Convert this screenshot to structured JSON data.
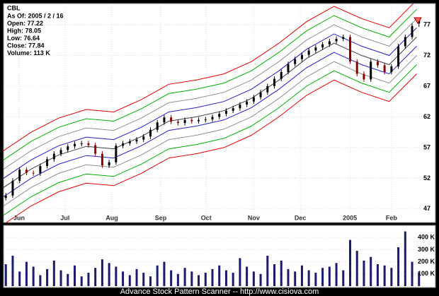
{
  "chart_data": [
    {
      "type": "candlestick",
      "title": "CBL",
      "annotations": [
        "As Of: 2005 / 2 / 16",
        "Open: 77.22",
        "High: 78.05",
        "Low: 76.64",
        "Close: 77.84",
        "Volume: 113 K"
      ],
      "xlim": [
        0,
        182
      ],
      "xticks": [
        {
          "value": 6.8,
          "label": "Jun"
        },
        {
          "value": 26.8,
          "label": "Jul"
        },
        {
          "value": 47.2,
          "label": "Aug"
        },
        {
          "value": 68.5,
          "label": "Sep"
        },
        {
          "value": 88.3,
          "label": "Oct"
        },
        {
          "value": 109,
          "label": "Nov"
        },
        {
          "value": 129.3,
          "label": "Dec"
        },
        {
          "value": 150.9,
          "label": "2005"
        },
        {
          "value": 169,
          "label": "Feb"
        }
      ],
      "ylim": [
        44.8,
        80.45
      ],
      "yticks": [
        47,
        52,
        57,
        62,
        67,
        72,
        77
      ],
      "grid": true,
      "up_color": "#000000",
      "down_color": "#8b0000",
      "x": [
        1,
        4,
        7,
        10,
        13,
        16,
        19,
        22,
        25,
        28,
        31,
        34,
        37,
        40,
        43,
        46,
        49,
        52,
        55,
        58,
        61,
        64,
        67,
        70,
        73,
        76,
        79,
        82,
        85,
        88,
        91,
        94,
        97,
        100,
        103,
        106,
        109,
        112,
        115,
        118,
        121,
        124,
        127,
        130,
        133,
        136,
        139,
        142,
        145,
        148,
        151,
        154,
        157,
        160,
        163,
        166,
        169,
        172,
        175,
        178,
        181
      ],
      "open": [
        48.8,
        49.2,
        51.6,
        53.4,
        52.9,
        52.8,
        54.0,
        55.1,
        56.0,
        56.6,
        57.2,
        57.6,
        57.7,
        57.4,
        56.0,
        54.1,
        54.6,
        57.3,
        57.7,
        58.0,
        58.3,
        58.8,
        59.9,
        61.1,
        61.9,
        61.2,
        61.0,
        61.5,
        61.3,
        61.5,
        61.6,
        62.0,
        62.5,
        63.0,
        63.4,
        64.0,
        64.5,
        65.2,
        66.0,
        67.0,
        68.2,
        69.3,
        70.6,
        71.4,
        72.1,
        72.8,
        73.3,
        73.8,
        74.3,
        74.7,
        75.0,
        71.0,
        69.0,
        68.1,
        71.0,
        70.4,
        69.3,
        70.2,
        73.5,
        75.0,
        77.22
      ],
      "high": [
        49.6,
        52.0,
        53.8,
        53.8,
        53.3,
        54.4,
        55.5,
        56.4,
        57.0,
        57.6,
        58.0,
        58.1,
        58.1,
        57.8,
        56.4,
        55.0,
        57.7,
        58.1,
        58.4,
        58.7,
        59.2,
        60.3,
        61.5,
        62.3,
        62.3,
        61.6,
        61.9,
        61.9,
        61.9,
        62.0,
        62.4,
        62.9,
        63.4,
        63.8,
        64.4,
        64.9,
        65.6,
        66.4,
        67.4,
        68.6,
        69.7,
        71.0,
        71.8,
        72.5,
        73.2,
        73.7,
        74.2,
        74.7,
        75.1,
        75.4,
        75.4,
        71.4,
        69.4,
        71.4,
        71.4,
        70.8,
        70.6,
        73.9,
        75.4,
        77.2,
        78.05
      ],
      "low": [
        48.4,
        48.8,
        51.2,
        52.5,
        52.4,
        52.4,
        53.6,
        54.7,
        55.6,
        56.2,
        56.8,
        57.2,
        57.0,
        55.6,
        53.7,
        53.7,
        54.2,
        56.9,
        57.3,
        57.6,
        57.9,
        58.4,
        59.5,
        60.7,
        60.8,
        60.6,
        60.6,
        60.9,
        60.9,
        61.1,
        61.2,
        61.6,
        62.1,
        62.6,
        63.0,
        63.6,
        64.1,
        64.8,
        65.6,
        66.6,
        67.8,
        68.9,
        70.2,
        71.0,
        71.7,
        72.4,
        72.9,
        73.4,
        73.9,
        74.3,
        70.6,
        68.6,
        67.7,
        67.7,
        70.0,
        68.9,
        68.9,
        69.8,
        73.1,
        74.6,
        76.64
      ],
      "close": [
        49.2,
        51.6,
        53.4,
        52.9,
        52.8,
        54.0,
        55.1,
        56.0,
        56.6,
        57.2,
        57.6,
        57.7,
        57.4,
        56.0,
        54.1,
        54.6,
        57.3,
        57.7,
        58.0,
        58.3,
        58.8,
        59.9,
        61.1,
        61.9,
        61.2,
        61.0,
        61.5,
        61.3,
        61.5,
        61.6,
        62.0,
        62.5,
        63.0,
        63.4,
        64.0,
        64.5,
        65.2,
        66.0,
        67.0,
        68.2,
        69.3,
        70.6,
        71.4,
        72.1,
        72.8,
        73.3,
        73.8,
        74.3,
        74.7,
        75.0,
        71.0,
        69.0,
        68.1,
        71.0,
        70.4,
        69.3,
        70.2,
        73.5,
        75.0,
        76.8,
        77.84
      ],
      "band_x": [
        0,
        12,
        24,
        36,
        48,
        60,
        72,
        84,
        96,
        108,
        120,
        132,
        144,
        156,
        168,
        180
      ],
      "bands": [
        {
          "color": "#e00000",
          "values": [
            56.5,
            59.5,
            61.8,
            63.2,
            62.8,
            64.8,
            67.3,
            68.0,
            69.0,
            71.0,
            74.0,
            77.5,
            80.0,
            78.0,
            76.5,
            81.0
          ]
        },
        {
          "color": "#00b000",
          "values": [
            55.0,
            58.0,
            60.3,
            61.7,
            61.3,
            63.3,
            65.8,
            66.5,
            67.5,
            69.5,
            72.5,
            76.0,
            78.5,
            76.5,
            75.0,
            79.5
          ]
        },
        {
          "color": "#909090",
          "values": [
            53.5,
            56.5,
            58.8,
            60.2,
            59.8,
            61.8,
            64.3,
            65.0,
            66.0,
            68.0,
            71.0,
            74.5,
            77.0,
            75.0,
            73.5,
            78.0
          ]
        },
        {
          "color": "#2020c0",
          "values": [
            52.0,
            55.0,
            57.3,
            58.7,
            58.3,
            60.3,
            62.8,
            63.5,
            64.5,
            66.5,
            69.5,
            73.0,
            75.5,
            73.5,
            72.0,
            76.5
          ]
        },
        {
          "color": "#404040",
          "values": [
            50.5,
            53.5,
            55.8,
            57.2,
            56.8,
            58.8,
            61.3,
            62.0,
            63.0,
            65.0,
            68.0,
            71.5,
            74.0,
            72.0,
            70.5,
            75.0
          ]
        },
        {
          "color": "#2020c0",
          "values": [
            49.0,
            52.0,
            54.3,
            55.7,
            55.3,
            57.3,
            59.8,
            60.5,
            61.5,
            63.5,
            66.5,
            70.0,
            72.5,
            70.5,
            69.0,
            73.5
          ]
        },
        {
          "color": "#909090",
          "values": [
            47.5,
            50.5,
            52.8,
            54.2,
            53.8,
            55.8,
            58.3,
            59.0,
            60.0,
            62.0,
            65.0,
            68.5,
            71.0,
            69.0,
            67.5,
            72.0
          ]
        },
        {
          "color": "#00b000",
          "values": [
            46.0,
            49.0,
            51.3,
            52.7,
            52.3,
            54.3,
            56.8,
            57.5,
            58.5,
            60.5,
            63.5,
            67.0,
            69.5,
            67.5,
            66.0,
            70.5
          ]
        },
        {
          "color": "#e00000",
          "values": [
            44.5,
            47.5,
            49.8,
            51.2,
            50.8,
            52.8,
            55.3,
            56.0,
            57.0,
            59.0,
            62.0,
            65.5,
            68.0,
            66.0,
            64.5,
            69.0
          ]
        }
      ]
    },
    {
      "type": "bar",
      "color": "#1a1a6e",
      "xlim": [
        0,
        182
      ],
      "ylim": [
        0,
        494
      ],
      "yticks": [
        {
          "value": 100,
          "label": "100 K"
        },
        {
          "value": 200,
          "label": "200 K"
        },
        {
          "value": 300,
          "label": "300 K"
        },
        {
          "value": 400,
          "label": "400 K"
        }
      ],
      "x": [
        1,
        4,
        7,
        10,
        13,
        16,
        19,
        22,
        25,
        28,
        31,
        34,
        37,
        40,
        43,
        46,
        49,
        52,
        55,
        58,
        61,
        64,
        67,
        70,
        73,
        76,
        79,
        82,
        85,
        88,
        91,
        94,
        97,
        100,
        103,
        106,
        109,
        112,
        115,
        118,
        121,
        124,
        127,
        130,
        133,
        136,
        139,
        142,
        145,
        148,
        151,
        154,
        157,
        160,
        163,
        166,
        169,
        172,
        175,
        178,
        181
      ],
      "values": [
        180,
        250,
        120,
        200,
        160,
        90,
        140,
        210,
        130,
        100,
        170,
        80,
        110,
        150,
        220,
        190,
        160,
        120,
        90,
        140,
        110,
        80,
        170,
        200,
        130,
        100,
        150,
        120,
        90,
        110,
        140,
        170,
        130,
        110,
        230,
        160,
        120,
        100,
        250,
        180,
        210,
        140,
        120,
        170,
        130,
        110,
        150,
        160,
        190,
        130,
        380,
        290,
        210,
        240,
        180,
        170,
        150,
        320,
        450,
        200,
        113
      ]
    }
  ],
  "footer": "Advance Stock Pattern Scanner -- http://www.cisiova.com"
}
